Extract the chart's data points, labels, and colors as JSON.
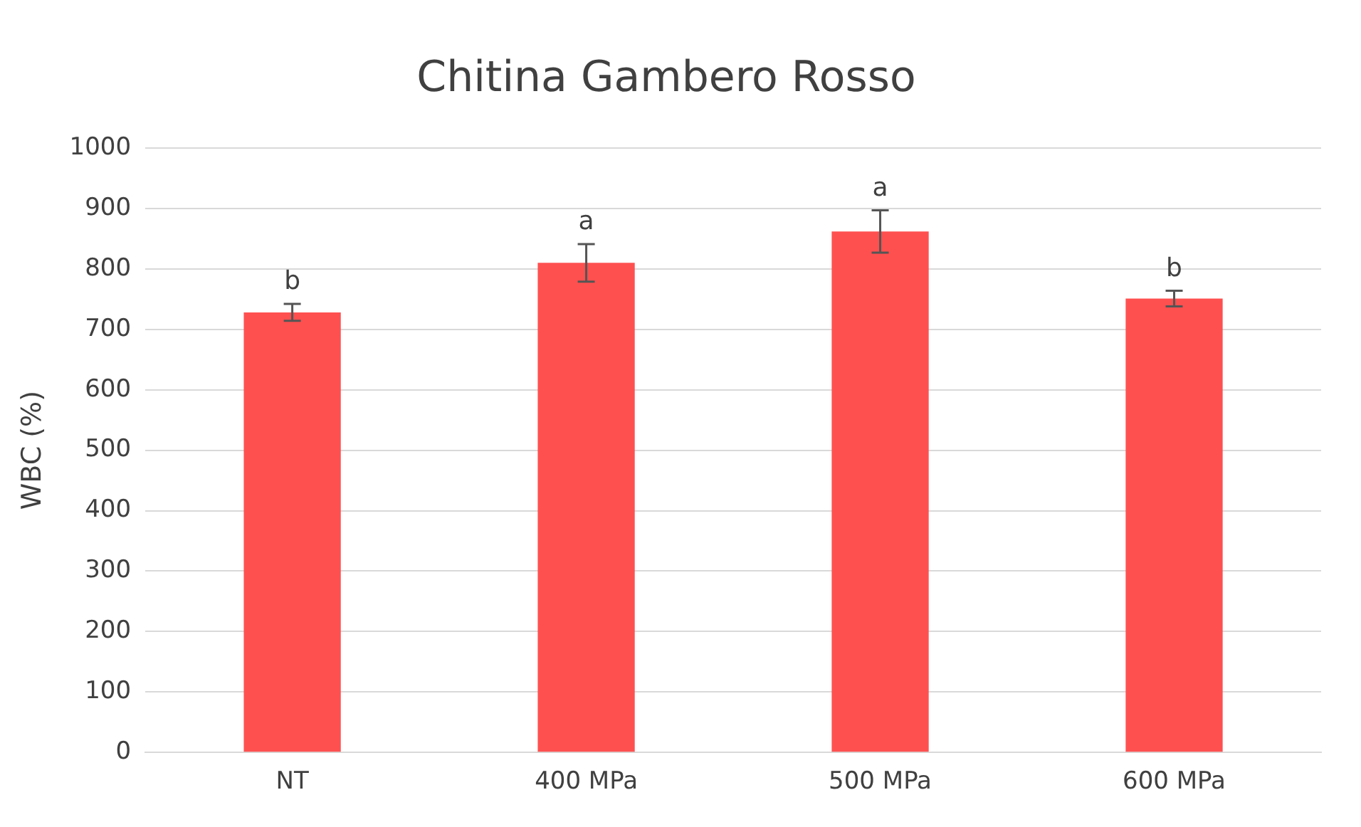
{
  "chart_data": {
    "type": "bar",
    "title": "Chitina Gambero Rosso",
    "ylabel": "WBC (%)",
    "categories": [
      "NT",
      "400 MPa",
      "500 MPa",
      "600 MPa"
    ],
    "values": [
      728,
      810,
      862,
      751
    ],
    "errors": [
      14,
      31,
      35,
      13
    ],
    "color": "#ff5050",
    "ylim": [
      0,
      1000
    ],
    "yticks": [
      0,
      100,
      200,
      300,
      400,
      500,
      600,
      700,
      800,
      900,
      1000
    ],
    "grid": "y",
    "legend": false,
    "annotations": [
      {
        "text": "b",
        "x": "NT",
        "y": 742
      },
      {
        "text": "a",
        "x": "400 MPa",
        "y": 841
      },
      {
        "text": "a",
        "x": "500 MPa",
        "y": 897
      },
      {
        "text": "b",
        "x": "600 MPa",
        "y": 764
      }
    ]
  }
}
